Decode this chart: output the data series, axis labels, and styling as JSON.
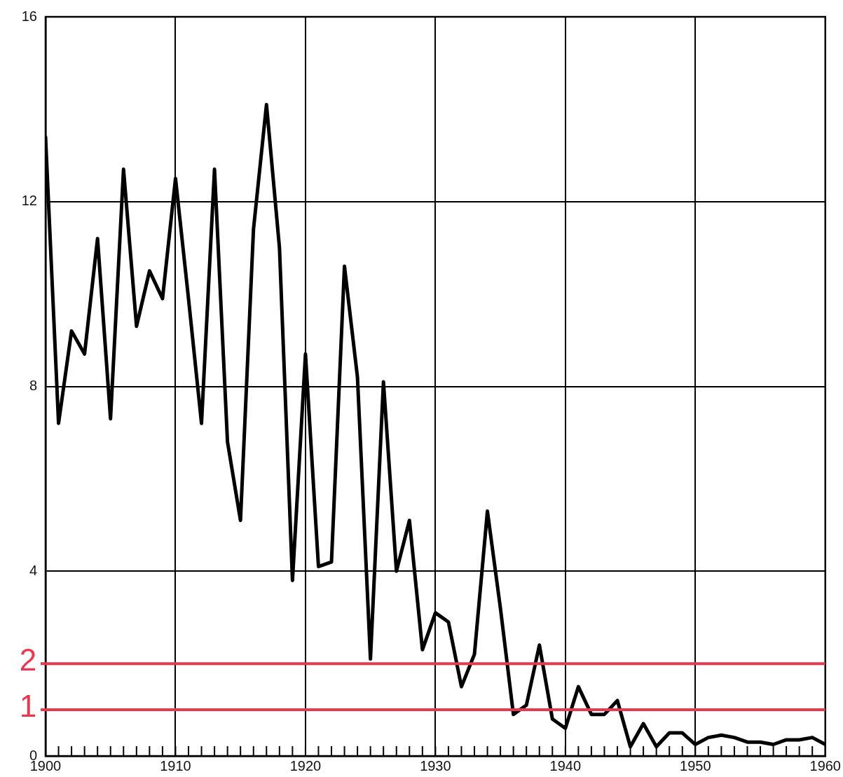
{
  "chart_data": {
    "type": "line",
    "x": [
      1900,
      1901,
      1902,
      1903,
      1904,
      1905,
      1906,
      1907,
      1908,
      1909,
      1910,
      1911,
      1912,
      1913,
      1914,
      1915,
      1916,
      1917,
      1918,
      1919,
      1920,
      1921,
      1922,
      1923,
      1924,
      1925,
      1926,
      1927,
      1928,
      1929,
      1930,
      1931,
      1932,
      1933,
      1934,
      1935,
      1936,
      1937,
      1938,
      1939,
      1940,
      1941,
      1942,
      1943,
      1944,
      1945,
      1946,
      1947,
      1948,
      1949,
      1950,
      1951,
      1952,
      1953,
      1954,
      1955,
      1956,
      1957,
      1958,
      1959,
      1960
    ],
    "series": [
      {
        "color": "#000000",
        "values": [
          13.4,
          7.2,
          9.2,
          8.7,
          11.2,
          7.3,
          12.7,
          9.3,
          10.5,
          9.9,
          12.5,
          9.9,
          7.2,
          12.7,
          6.8,
          5.1,
          11.4,
          14.1,
          11.0,
          3.8,
          8.7,
          4.1,
          4.2,
          10.6,
          8.2,
          2.1,
          8.1,
          4.0,
          5.1,
          2.3,
          3.1,
          2.9,
          1.5,
          2.2,
          5.3,
          3.2,
          0.9,
          1.1,
          2.4,
          0.8,
          0.6,
          1.5,
          0.9,
          0.9,
          1.2,
          0.2,
          0.7,
          0.2,
          0.5,
          0.5,
          0.25,
          0.4,
          0.45,
          0.4,
          0.3,
          0.3,
          0.25,
          0.35,
          0.35,
          0.4,
          0.25
        ]
      }
    ],
    "xlim": [
      1900,
      1960
    ],
    "xticks": [
      1900,
      {
        "value": 1901,
        "label": null
      },
      {
        "value": 1902,
        "label": null
      },
      {
        "value": 1903,
        "label": null
      },
      {
        "value": 1904,
        "label": null
      },
      {
        "value": 1905,
        "label": null
      },
      {
        "value": 1906,
        "label": null
      },
      {
        "value": 1907,
        "label": null
      },
      {
        "value": 1908,
        "label": null
      },
      {
        "value": 1909,
        "label": null
      },
      1910,
      {
        "value": 1911,
        "label": null
      },
      {
        "value": 1912,
        "label": null
      },
      {
        "value": 1913,
        "label": null
      },
      {
        "value": 1914,
        "label": null
      },
      {
        "value": 1915,
        "label": null
      },
      {
        "value": 1916,
        "label": null
      },
      {
        "value": 1917,
        "label": null
      },
      {
        "value": 1918,
        "label": null
      },
      {
        "value": 1919,
        "label": null
      },
      1920,
      {
        "value": 1921,
        "label": null
      },
      {
        "value": 1922,
        "label": null
      },
      {
        "value": 1923,
        "label": null
      },
      {
        "value": 1924,
        "label": null
      },
      {
        "value": 1925,
        "label": null
      },
      {
        "value": 1926,
        "label": null
      },
      {
        "value": 1927,
        "label": null
      },
      {
        "value": 1928,
        "label": null
      },
      {
        "value": 1929,
        "label": null
      },
      1930,
      {
        "value": 1931,
        "label": null
      },
      {
        "value": 1932,
        "label": null
      },
      {
        "value": 1933,
        "label": null
      },
      {
        "value": 1934,
        "label": null
      },
      {
        "value": 1935,
        "label": null
      },
      {
        "value": 1936,
        "label": null
      },
      {
        "value": 1937,
        "label": null
      },
      {
        "value": 1938,
        "label": null
      },
      {
        "value": 1939,
        "label": null
      },
      1940,
      {
        "value": 1941,
        "label": null
      },
      {
        "value": 1942,
        "label": null
      },
      {
        "value": 1943,
        "label": null
      },
      {
        "value": 1944,
        "label": null
      },
      {
        "value": 1945,
        "label": null
      },
      {
        "value": 1946,
        "label": null
      },
      {
        "value": 1947,
        "label": null
      },
      {
        "value": 1948,
        "label": null
      },
      {
        "value": 1949,
        "label": null
      },
      1950,
      {
        "value": 1951,
        "label": null
      },
      {
        "value": 1952,
        "label": null
      },
      {
        "value": 1953,
        "label": null
      },
      {
        "value": 1954,
        "label": null
      },
      {
        "value": 1955,
        "label": null
      },
      {
        "value": 1956,
        "label": null
      },
      {
        "value": 1957,
        "label": null
      },
      {
        "value": 1958,
        "label": null
      },
      {
        "value": 1959,
        "label": null
      },
      1960
    ],
    "ylim": [
      0,
      16
    ],
    "yticks": [
      0,
      4,
      8,
      12,
      16
    ],
    "grid": true,
    "marker": "none",
    "line_style": "solid",
    "legend": false,
    "ref_lines": [
      {
        "axis": "y",
        "value": 2,
        "label": "2",
        "color": "#e8384f"
      },
      {
        "axis": "y",
        "value": 1,
        "label": "1",
        "color": "#e8384f"
      }
    ]
  }
}
